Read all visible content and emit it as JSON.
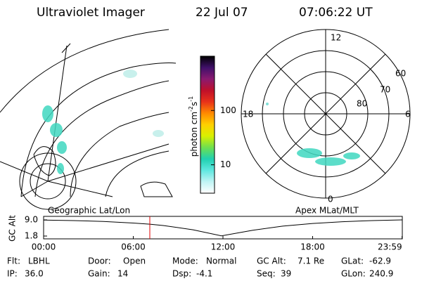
{
  "header": {
    "title": "Ultraviolet Imager",
    "date": "22 Jul 07",
    "time": "07:06:22 UT"
  },
  "colorbar": {
    "label": "photon cm",
    "exp1": "-2",
    "unit2": "s",
    "exp2": "-1",
    "ticks": [
      100,
      10
    ],
    "range": [
      3,
      1000
    ],
    "colors": [
      "#000000",
      "#40106a",
      "#8a1a70",
      "#c0102a",
      "#e8321a",
      "#ff8a00",
      "#ffd000",
      "#d8f000",
      "#6ee050",
      "#20d0b0",
      "#60e8e0",
      "#c0f4f4",
      "#ffffff"
    ]
  },
  "left_map": {
    "caption": "Geographic Lat/Lon"
  },
  "polar": {
    "caption": "Apex MLat/MLT",
    "lat_labels": [
      60,
      70,
      80
    ],
    "mlt_labels": [
      12,
      18,
      6,
      0
    ]
  },
  "altitude_plot": {
    "ylabel": "GC Alt",
    "ylim": [
      1.8,
      9.0
    ],
    "yticks": [
      {
        "value": 9.0,
        "label": "9.0"
      },
      {
        "value": 1.8,
        "label": "1.8"
      }
    ],
    "xlim": [
      0,
      24
    ],
    "xticks": [
      {
        "value": 0,
        "label": "00:00"
      },
      {
        "value": 6,
        "label": "06:00"
      },
      {
        "value": 12,
        "label": "12:00"
      },
      {
        "value": 18,
        "label": "18:00"
      },
      {
        "value": 23.983,
        "label": "23:59"
      }
    ],
    "hours": [
      0,
      2,
      4,
      6,
      7.1,
      8,
      10,
      11.9,
      14,
      16,
      18,
      20,
      22,
      23.983
    ],
    "values": [
      8.9,
      8.7,
      8.3,
      7.6,
      7.1,
      6.5,
      4.6,
      1.9,
      4.4,
      6.2,
      7.4,
      8.2,
      8.7,
      9.0
    ],
    "marker_color": "#e00000",
    "line_color": "#000000"
  },
  "status": [
    [
      {
        "label": "Flt:",
        "value": "LBHL"
      },
      {
        "label": "Door:",
        "value": "Open"
      },
      {
        "label": "Mode:",
        "value": "Normal"
      },
      {
        "label": "GC Alt:",
        "value": "7.1 Re"
      },
      {
        "label": "GLat:",
        "value": "-62.9"
      }
    ],
    [
      {
        "label": "IP:",
        "value": "36.0"
      },
      {
        "label": "Gain:",
        "value": "14"
      },
      {
        "label": "Dsp:",
        "value": "-4.1"
      },
      {
        "label": "Seq:",
        "value": "39"
      },
      {
        "label": "GLon:",
        "value": "240.9"
      }
    ]
  ]
}
